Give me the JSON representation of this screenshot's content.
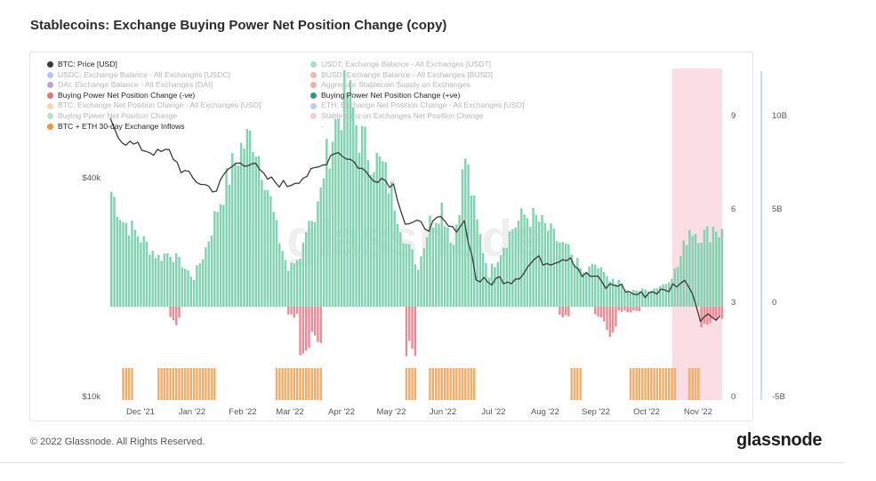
{
  "page": {
    "title": "Stablecoins: Exchange Buying Power Net Position Change (copy)",
    "copyright": "© 2022 Glassnode. All Rights Reserved.",
    "brand": "glassnode",
    "watermark": "glassnode"
  },
  "legend": {
    "left": [
      {
        "label": "BTC: Price [USD]",
        "color": "#3a3a3a",
        "active": true
      },
      {
        "label": "USDC: Exchange Balance - All Exchanges [USDC]",
        "color": "#5b7fe0",
        "active": false
      },
      {
        "label": "DAI: Exchange Balance - All Exchanges [DAI]",
        "color": "#7b2fa0",
        "active": false
      },
      {
        "label": "Buying Power Net Position Change (-ve)",
        "color": "#ea6f7a",
        "active": true
      },
      {
        "label": "BTC: Exchange Net Position Change - All Exchanges [USD]",
        "color": "#f2a35e",
        "active": false
      },
      {
        "label": "Buying Power Net Position Change",
        "color": "#5fb88a",
        "active": false
      },
      {
        "label": "BTC + ETH 30-day Exchange Inflows",
        "color": "#f5923a",
        "active": true
      }
    ],
    "right": [
      {
        "label": "USDT: Exchange Balance - All Exchanges [USDT]",
        "color": "#2fbf8a",
        "active": false
      },
      {
        "label": "BUSD: Exchange Balance - All Exchanges [BUSD]",
        "color": "#e0623a",
        "active": false
      },
      {
        "label": "Aggregate Stablecoin Supply on Exchanges",
        "color": "#e0503a",
        "active": false
      },
      {
        "label": "Buying Power Net Position Change (+ve)",
        "color": "#2a9d78",
        "active": true
      },
      {
        "label": "ETH: Exchange Net Position Change - All Exchanges [USD]",
        "color": "#6a8de6",
        "active": false
      },
      {
        "label": "Stablecoins on Exchanges Net Position Change",
        "color": "#ee8aa4",
        "active": false
      },
      {
        "label": "-",
        "color": "transparent",
        "active": false
      }
    ]
  },
  "chart_data": {
    "type": "bar",
    "x_labels": [
      "Dec '21",
      "Jan '22",
      "Feb '22",
      "Mar '22",
      "Apr '22",
      "May '22",
      "Jun '22",
      "Jul '22",
      "Aug '22",
      "Sep '22",
      "Oct '22",
      "Nov '22"
    ],
    "y_left_ticks": [
      "$40k",
      "$10k"
    ],
    "y_mid_ticks": [
      "9",
      "6",
      "3",
      "0"
    ],
    "y_right_ticks": [
      "10B",
      "5B",
      "0",
      "-5B"
    ],
    "y_right_range": [
      -5,
      12
    ],
    "highlight_range": [
      "Oct 31 '22",
      "Nov 16 '22"
    ],
    "colors": {
      "positive": "#7fd3b0",
      "negative": "#ee8a96",
      "inflows": "#f6ab66",
      "price": "#3a3a3a",
      "highlight": "#fbdde4",
      "right_axis_line": "#7fd3b0"
    },
    "series": [
      {
        "name": "Buying Power Net Position Change (+ve)",
        "unit": "USD billions",
        "weekly_values": [
          6.3,
          4.7,
          4.1,
          3.4,
          2.7,
          3.0,
          2.2,
          1.6,
          3.2,
          5.4,
          7.2,
          8.7,
          9.4,
          7.3,
          4.2,
          2.0,
          2.8,
          4.6,
          7.5,
          10.0,
          11.8,
          9.4,
          8.3,
          7.6,
          5.8,
          3.4,
          2.3,
          4.6,
          5.5,
          3.4,
          8.2,
          4.5,
          1.8,
          3.1,
          4.3,
          5.0,
          4.8,
          4.2,
          3.5,
          2.9,
          1.8,
          2.3,
          1.6,
          1.3,
          0.8,
          0.9,
          1.0,
          1.3,
          2.2,
          4.3,
          3.9,
          4.1
        ]
      },
      {
        "name": "Buying Power Net Position Change (-ve)",
        "unit": "USD billions",
        "weekly_values": [
          0,
          0,
          0,
          0,
          0,
          -0.9,
          0,
          0,
          0,
          0,
          0,
          0,
          0,
          0,
          0,
          -0.6,
          -2.4,
          -2.0,
          0,
          0,
          0,
          0,
          0,
          0,
          0,
          -3.2,
          0,
          0,
          0,
          0,
          0,
          0,
          0,
          0,
          0,
          0,
          0,
          0,
          -0.5,
          0,
          0,
          -0.7,
          -1.9,
          -0.3,
          -0.3,
          0,
          0,
          0,
          0,
          0,
          -1.3,
          -0.6
        ]
      },
      {
        "name": "BTC + ETH 30-day Exchange Inflows",
        "unit": "flag",
        "weekly_values": [
          0,
          1,
          0,
          0,
          1,
          1,
          1,
          1,
          1,
          0,
          0,
          0,
          0,
          0,
          1,
          1,
          1,
          1,
          0,
          0,
          0,
          0,
          0,
          0,
          0,
          1,
          0,
          1,
          1,
          1,
          1,
          0,
          0,
          0,
          0,
          0,
          0,
          0,
          0,
          1,
          0,
          0,
          0,
          0,
          1,
          1,
          1,
          1,
          0,
          1,
          0,
          0
        ]
      },
      {
        "name": "BTC: Price [USD]",
        "unit": "USD",
        "weekly_values": [
          57000,
          50500,
          49000,
          47500,
          46500,
          47000,
          42000,
          39500,
          38000,
          36800,
          42000,
          44000,
          43800,
          40000,
          38700,
          38000,
          39500,
          41000,
          43000,
          47300,
          45500,
          43000,
          40000,
          39700,
          38000,
          30000,
          29600,
          29200,
          30500,
          28500,
          30100,
          21000,
          20400,
          21000,
          20800,
          21900,
          23800,
          23300,
          23800,
          24200,
          21500,
          21300,
          19900,
          20300,
          19200,
          18900,
          19400,
          19300,
          20400,
          20500,
          16500,
          16600
        ]
      }
    ]
  }
}
